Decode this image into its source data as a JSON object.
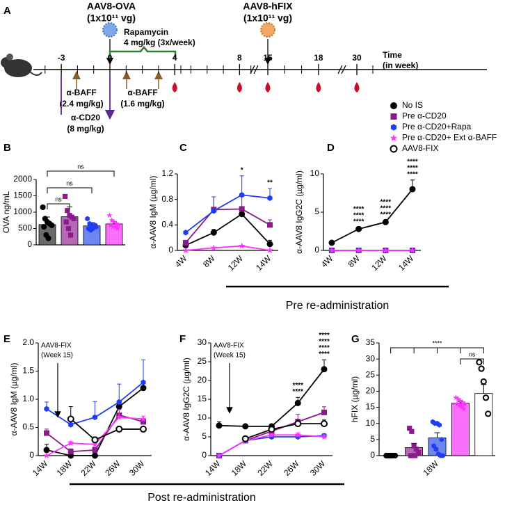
{
  "panels": [
    "A",
    "B",
    "C",
    "D",
    "E",
    "F",
    "G"
  ],
  "timeline": {
    "injections": [
      {
        "title": "AAV8-OVA",
        "dose": "(1x10¹¹ vg)"
      },
      {
        "title": "AAV8-hFIX",
        "dose": "(1x10¹¹ vg)"
      }
    ],
    "rapamycin": [
      "Rapamycin",
      "4 mg/kg (3x/week)"
    ],
    "treatments": [
      [
        "α-BAFF",
        "(2.4 mg/kg)"
      ],
      [
        "α-CD20",
        "(8 mg/kg)"
      ],
      [
        "α-BAFF",
        "(1.6 mg/kg)"
      ]
    ],
    "ticks": [
      -3,
      0,
      4,
      8,
      15,
      18,
      30
    ],
    "axis_label": [
      "Time",
      "(in week)"
    ]
  },
  "legend": [
    {
      "name": "No IS",
      "color": "#000000",
      "marker": "circle"
    },
    {
      "name": "Pre α-CD20",
      "color": "#8b1a8b",
      "marker": "square"
    },
    {
      "name": "Pre α-CD20+Rapa",
      "color": "#1f3df5",
      "marker": "hexagon"
    },
    {
      "name": "Pre α-CD20+ Ext α-BAFF",
      "color": "#ff33ff",
      "marker": "star"
    },
    {
      "name": "AAV8-FIX",
      "color": "#000000",
      "marker": "open-circle"
    }
  ],
  "spans": [
    "Pre re-administration",
    "Post re-administration"
  ],
  "chart_data": [
    {
      "type": "bar",
      "ylabel": "OVA ng/mL",
      "categories": [
        null,
        null,
        null,
        null
      ],
      "groups": [
        "No IS",
        "Pre α-CD20",
        "Pre α-CD20+Rapa",
        "Pre α-CD20+ Ext α-BAFF"
      ],
      "colors": [
        "#6b6b6b",
        "#b56ab5",
        "#6e86f2",
        "#fa70fa"
      ],
      "values": [
        620,
        860,
        580,
        640
      ],
      "errors": [
        230,
        300,
        100,
        70
      ],
      "points": [
        [
          1150,
          800,
          700,
          650,
          600,
          550,
          300,
          200
        ],
        [
          1480,
          1050,
          900,
          850,
          800,
          700,
          500,
          300
        ],
        [
          800,
          650,
          600,
          580,
          550,
          500,
          450,
          500,
          600
        ],
        [
          900,
          750,
          700,
          650,
          600,
          600,
          550,
          550,
          500
        ]
      ],
      "ylim": [
        0,
        2000
      ],
      "yticks": [
        0,
        500,
        1000,
        1500,
        2000
      ],
      "annotations": [
        "ns",
        "ns",
        "ns"
      ]
    },
    {
      "type": "line",
      "ylabel": "α-AAV8 IgM (µg/ml)",
      "categories": [
        "4W",
        "8W",
        "12W",
        "14W"
      ],
      "ylim": [
        0,
        1.2
      ],
      "yticks": [
        0,
        0.4,
        0.8,
        1.2
      ],
      "series": [
        {
          "name": "No IS",
          "values": [
            0.08,
            0.28,
            0.57,
            0.1
          ],
          "errors": [
            0.04,
            0.05,
            0.1,
            0.06
          ]
        },
        {
          "name": "Pre α-CD20",
          "values": [
            0.12,
            0.64,
            0.65,
            0.4
          ],
          "errors": [
            0.04,
            0.2,
            0.22,
            0.08
          ]
        },
        {
          "name": "Pre α-CD20+Rapa",
          "values": [
            0.28,
            0.62,
            0.87,
            0.82
          ],
          "errors": [
            0.02,
            0.22,
            0.3,
            0.15
          ],
          "stars": [
            null,
            null,
            null,
            "**"
          ]
        },
        {
          "name": "Pre α-CD20+ Ext α-BAFF",
          "values": [
            0,
            0.04,
            0.07,
            0
          ],
          "stars": [
            null,
            null,
            "*",
            null
          ]
        }
      ]
    },
    {
      "type": "line",
      "ylabel": "α-AAV8 IgG2C (µg/ml)",
      "categories": [
        "4W",
        "8W",
        "12W",
        "14W"
      ],
      "ylim": [
        0,
        10
      ],
      "yticks": [
        0,
        5,
        10
      ],
      "series": [
        {
          "name": "No IS",
          "values": [
            1,
            2.8,
            3.7,
            8
          ],
          "errors": [
            0.1,
            0.2,
            0.2,
            1.2
          ]
        },
        {
          "name": "Pre α-CD20",
          "values": [
            0,
            0,
            0,
            0
          ],
          "stars": [
            null,
            "****",
            "****",
            "****"
          ]
        },
        {
          "name": "Pre α-CD20+Rapa",
          "values": [
            0,
            0,
            0,
            0
          ],
          "stars": [
            null,
            "****",
            "****",
            "****"
          ]
        },
        {
          "name": "Pre α-CD20+ Ext α-BAFF",
          "values": [
            0,
            0,
            0,
            0
          ],
          "stars": [
            null,
            "****",
            "****",
            "****"
          ]
        }
      ]
    },
    {
      "type": "line",
      "ylabel": "α-AAV8 IgM (µg/ml)",
      "categories": [
        "14W",
        "18W",
        "22W",
        "26W",
        "30W"
      ],
      "ylim": [
        0,
        2
      ],
      "yticks": [
        0,
        0.5,
        {
          "value": 1,
          "label": "1.0"
        },
        1.5,
        {
          "value": 2,
          "label": "2.0"
        }
      ],
      "annotations": [
        "AAV8-FIX",
        "(Week 15)"
      ],
      "series": [
        {
          "name": "No IS",
          "values": [
            0.1,
            0,
            0,
            0.87,
            1.2
          ],
          "errors": [
            0.1,
            0.05,
            0.05,
            0.1,
            0.08
          ]
        },
        {
          "name": "Pre α-CD20",
          "values": [
            0.4,
            0.07,
            0.1,
            0.72,
            0.6
          ],
          "errors": [
            0.07,
            0.05,
            0.05,
            0.1,
            0.06
          ]
        },
        {
          "name": "Pre α-CD20+Rapa",
          "values": [
            0.83,
            0.55,
            0.68,
            0.95,
            1.3
          ],
          "errors": [
            0.12,
            0.05,
            0.28,
            0.32,
            0.4
          ]
        },
        {
          "name": "Pre α-CD20+ Ext α-BAFF",
          "values": [
            0,
            0.22,
            0.2,
            0.68,
            0.65
          ],
          "errors": [
            0,
            0.03,
            0.03,
            0.08,
            0.05
          ]
        },
        {
          "name": "AAV8-FIX",
          "values": [
            null,
            0.65,
            0.28,
            0.47,
            0.47
          ],
          "errors": [
            null,
            0.22,
            0.05,
            0.05,
            0.04
          ]
        }
      ]
    },
    {
      "type": "line",
      "ylabel": "α-AAV8 IgG2C (µg/ml)",
      "categories": [
        "14W",
        "18W",
        "22W",
        "26W",
        "30W"
      ],
      "ylim": [
        0,
        30
      ],
      "yticks": [
        0,
        5,
        10,
        15,
        20,
        25,
        30
      ],
      "annotations": [
        "AAV8-FIX",
        "(Week 15)"
      ],
      "series": [
        {
          "name": "No IS",
          "values": [
            8,
            7.8,
            7.8,
            14,
            23
          ],
          "errors": [
            1,
            0.5,
            0.5,
            1.5,
            2.5
          ],
          "stars": [
            null,
            null,
            null,
            null,
            "****"
          ]
        },
        {
          "name": "Pre α-CD20",
          "values": [
            0,
            4,
            6.5,
            9,
            11.5
          ],
          "errors": [
            0,
            1,
            1,
            2,
            1.5
          ],
          "stars": [
            null,
            null,
            null,
            null,
            "****"
          ]
        },
        {
          "name": "Pre α-CD20+Rapa",
          "values": [
            0,
            4,
            5,
            5,
            5.3
          ],
          "errors": [
            0,
            0.5,
            0.5,
            0.5,
            0.5
          ],
          "stars": [
            null,
            null,
            null,
            "****",
            "****"
          ]
        },
        {
          "name": "Pre α-CD20+ Ext α-BAFF",
          "values": [
            0,
            4,
            5.5,
            5.5,
            5
          ],
          "errors": [
            0,
            0.5,
            0.5,
            0.5,
            0.5
          ],
          "stars": [
            null,
            null,
            null,
            "****",
            "****"
          ]
        },
        {
          "name": "AAV8-FIX",
          "values": [
            null,
            4.5,
            7,
            8.5,
            8.5
          ],
          "errors": [
            null,
            0.5,
            0.5,
            1,
            1
          ]
        }
      ]
    },
    {
      "type": "bar",
      "ylabel": "hFIX (µg/ml)",
      "categories": [
        null,
        null,
        "18W",
        null,
        null
      ],
      "groups": [
        "No IS",
        "Pre α-CD20",
        "Pre α-CD20+Rapa",
        "Pre α-CD20+ Ext α-BAFF",
        "AAV8-FIX"
      ],
      "colors": [
        "#6b6b6b",
        "#b56ab5",
        "#6e86f2",
        "#fa70fa",
        "#ffffff"
      ],
      "values": [
        0,
        2.5,
        5.5,
        16.3,
        19.3
      ],
      "errors": [
        0,
        1.3,
        1.6,
        0.5,
        2.8
      ],
      "points": [
        [
          0,
          0,
          0,
          0,
          0,
          0,
          0,
          0
        ],
        [
          8.5,
          7.5,
          3,
          2,
          1,
          0,
          0,
          0
        ],
        [
          10.5,
          10,
          10,
          9.5,
          5,
          3,
          2,
          0.5,
          0,
          0
        ],
        [
          18,
          17.5,
          17,
          16.5,
          16,
          16,
          15.5,
          15,
          14.5
        ],
        [
          29,
          27,
          23,
          18,
          13
        ]
      ],
      "ylim": [
        0,
        35
      ],
      "yticks": [
        0,
        5,
        10,
        15,
        20,
        25,
        30,
        35
      ],
      "annotations": [
        "****",
        "ns"
      ]
    }
  ]
}
